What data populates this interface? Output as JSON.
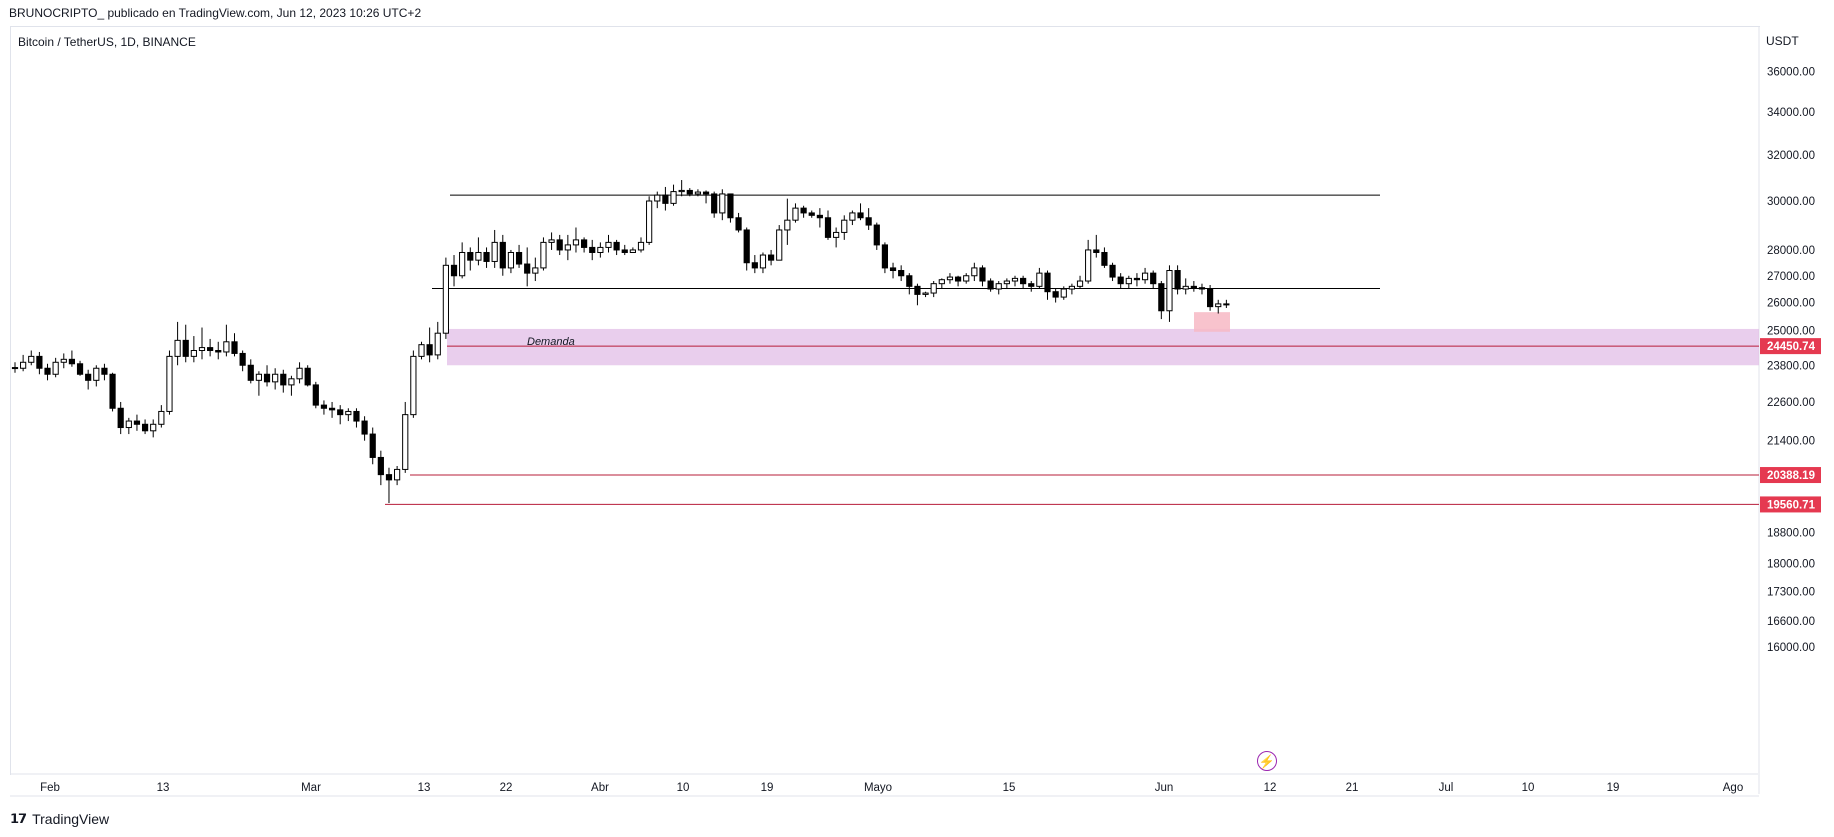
{
  "header": {
    "author_line": "BRUNOCRIPTO_ publicado en TradingView.com, Jun 12, 2023 10:26 UTC+2"
  },
  "symbol": {
    "title": "Bitcoin / TetherUS, 1D, BINANCE",
    "currency": "USDT"
  },
  "footer": {
    "brand": "TradingView",
    "brand_icon": "tradingview-logo-icon"
  },
  "icons": {
    "bolt": "lightning-icon"
  },
  "colors": {
    "candle": "#000000",
    "demand_zone": "#e1bee7",
    "level_line": "#b71c3a",
    "level_label_bg": "#e53950",
    "highlight_box": "#f7b9c4",
    "range_line": "#000000"
  },
  "chart_data": {
    "type": "candlestick",
    "title": "",
    "ylabel": "",
    "xlabel": "",
    "y_axis": {
      "scale": "log",
      "ticks": [
        "16000.00",
        "16600.00",
        "17300.00",
        "18000.00",
        "18800.00",
        "19560.71",
        "20388.19",
        "21400.00",
        "22600.00",
        "23800.00",
        "24450.74",
        "25000.00",
        "26000.00",
        "27000.00",
        "28000.00",
        "30000.00",
        "32000.00",
        "34000.00",
        "36000.00"
      ]
    },
    "x_axis": {
      "ticks": [
        "Feb",
        "13",
        "Mar",
        "13",
        "22",
        "Abr",
        "10",
        "19",
        "Mayo",
        "15",
        "Jun",
        "12",
        "21",
        "Jul",
        "10",
        "19",
        "Ago"
      ]
    },
    "candles": [
      [
        23723,
        23900,
        23550,
        23700
      ],
      [
        23700,
        24150,
        23600,
        23900
      ],
      [
        23900,
        24300,
        23800,
        24100
      ],
      [
        24100,
        24250,
        23500,
        23700
      ],
      [
        23700,
        23850,
        23300,
        23500
      ],
      [
        23500,
        24050,
        23400,
        23900
      ],
      [
        23900,
        24200,
        23700,
        24000
      ],
      [
        24000,
        24300,
        23750,
        23850
      ],
      [
        23850,
        23950,
        23450,
        23500
      ],
      [
        23500,
        23650,
        23000,
        23300
      ],
      [
        23300,
        23800,
        23100,
        23700
      ],
      [
        23700,
        23850,
        23300,
        23500
      ],
      [
        23500,
        23550,
        22300,
        22400
      ],
      [
        22400,
        22600,
        21600,
        21800
      ],
      [
        21800,
        22100,
        21600,
        22000
      ],
      [
        22000,
        22200,
        21700,
        21900
      ],
      [
        21900,
        22050,
        21600,
        21700
      ],
      [
        21700,
        22050,
        21500,
        21900
      ],
      [
        21900,
        22500,
        21800,
        22300
      ],
      [
        22300,
        24300,
        22200,
        24100
      ],
      [
        24100,
        25300,
        23800,
        24650
      ],
      [
        24650,
        25200,
        23900,
        24100
      ],
      [
        24100,
        24800,
        23900,
        24300
      ],
      [
        24300,
        25100,
        24000,
        24400
      ],
      [
        24400,
        24700,
        24100,
        24300
      ],
      [
        24300,
        24600,
        24000,
        24250
      ],
      [
        24250,
        25200,
        24100,
        24600
      ],
      [
        24600,
        24900,
        24100,
        24200
      ],
      [
        24200,
        24300,
        23600,
        23800
      ],
      [
        23800,
        24000,
        23200,
        23300
      ],
      [
        23300,
        23600,
        22800,
        23500
      ],
      [
        23500,
        23800,
        23100,
        23250
      ],
      [
        23250,
        23700,
        23000,
        23500
      ],
      [
        23500,
        23650,
        22900,
        23150
      ],
      [
        23150,
        23450,
        22800,
        23350
      ],
      [
        23350,
        23900,
        23200,
        23700
      ],
      [
        23700,
        23800,
        23100,
        23150
      ],
      [
        23150,
        23250,
        22400,
        22500
      ],
      [
        22500,
        22650,
        22200,
        22400
      ],
      [
        22400,
        22600,
        22100,
        22350
      ],
      [
        22350,
        22500,
        21900,
        22200
      ],
      [
        22200,
        22400,
        22000,
        22300
      ],
      [
        22300,
        22400,
        21800,
        22000
      ],
      [
        22000,
        22150,
        21400,
        21600
      ],
      [
        21600,
        21800,
        20700,
        20900
      ],
      [
        20900,
        21100,
        20100,
        20400
      ],
      [
        20400,
        20600,
        19600,
        20250
      ],
      [
        20250,
        20650,
        20100,
        20550
      ],
      [
        20550,
        22600,
        20450,
        22200
      ],
      [
        22200,
        24300,
        22100,
        24100
      ],
      [
        24100,
        24600,
        24000,
        24500
      ],
      [
        24500,
        25100,
        23900,
        24150
      ],
      [
        24150,
        25300,
        24000,
        24900
      ],
      [
        24900,
        27700,
        24700,
        27400
      ],
      [
        27400,
        27800,
        26600,
        27000
      ],
      [
        27000,
        28300,
        26900,
        27900
      ],
      [
        27900,
        28100,
        27200,
        27600
      ],
      [
        27600,
        28500,
        27400,
        27900
      ],
      [
        27900,
        28100,
        27300,
        27550
      ],
      [
        27550,
        28800,
        27300,
        28300
      ],
      [
        28300,
        28600,
        27000,
        27300
      ],
      [
        27300,
        28000,
        27100,
        27900
      ],
      [
        27900,
        28200,
        27300,
        27450
      ],
      [
        27450,
        28100,
        26600,
        27100
      ],
      [
        27100,
        27700,
        26800,
        27300
      ],
      [
        27300,
        28500,
        27200,
        28300
      ],
      [
        28300,
        28700,
        28000,
        28400
      ],
      [
        28400,
        28600,
        27800,
        28000
      ],
      [
        28000,
        28600,
        27600,
        28200
      ],
      [
        28200,
        28900,
        27900,
        28400
      ],
      [
        28400,
        28500,
        27900,
        28100
      ],
      [
        28100,
        28400,
        27600,
        27900
      ],
      [
        27900,
        28300,
        27700,
        28100
      ],
      [
        28100,
        28600,
        27900,
        28300
      ],
      [
        28300,
        28400,
        27800,
        28000
      ],
      [
        28000,
        28200,
        27800,
        27900
      ],
      [
        27900,
        28100,
        27900,
        28000
      ],
      [
        28000,
        28500,
        27900,
        28300
      ],
      [
        28300,
        30200,
        28200,
        30000
      ],
      [
        30000,
        30400,
        29700,
        30250
      ],
      [
        30250,
        30600,
        29600,
        29900
      ],
      [
        29900,
        30700,
        29800,
        30400
      ],
      [
        30400,
        30900,
        30200,
        30450
      ],
      [
        30450,
        30550,
        30200,
        30300
      ],
      [
        30300,
        30500,
        30200,
        30380
      ],
      [
        30380,
        30450,
        29900,
        30300
      ],
      [
        30300,
        30400,
        29300,
        29500
      ],
      [
        29500,
        30500,
        29200,
        30300
      ],
      [
        30300,
        30300,
        29100,
        29300
      ],
      [
        29300,
        29500,
        28700,
        28800
      ],
      [
        28800,
        28900,
        27200,
        27500
      ],
      [
        27500,
        27800,
        27100,
        27300
      ],
      [
        27300,
        27900,
        27100,
        27800
      ],
      [
        27800,
        28000,
        27400,
        27600
      ],
      [
        27600,
        29000,
        27600,
        28800
      ],
      [
        28800,
        30100,
        28200,
        29200
      ],
      [
        29200,
        29900,
        29100,
        29700
      ],
      [
        29700,
        29800,
        29300,
        29500
      ],
      [
        29500,
        29600,
        29300,
        29400
      ],
      [
        29400,
        29700,
        28900,
        29300
      ],
      [
        29300,
        29600,
        28400,
        28500
      ],
      [
        28500,
        28900,
        28100,
        28700
      ],
      [
        28700,
        29400,
        28400,
        29200
      ],
      [
        29200,
        29600,
        29000,
        29500
      ],
      [
        29500,
        29900,
        29200,
        29300
      ],
      [
        29300,
        29700,
        28800,
        29000
      ],
      [
        29000,
        29100,
        28000,
        28200
      ],
      [
        28200,
        28300,
        27100,
        27300
      ],
      [
        27300,
        27500,
        26900,
        27200
      ],
      [
        27200,
        27400,
        26800,
        27000
      ],
      [
        27000,
        27100,
        26300,
        26600
      ],
      [
        26600,
        26700,
        25900,
        26300
      ],
      [
        26300,
        26400,
        26200,
        26350
      ],
      [
        26350,
        26800,
        26200,
        26700
      ],
      [
        26700,
        26900,
        26500,
        26850
      ],
      [
        26850,
        27100,
        26700,
        26950
      ],
      [
        26950,
        27000,
        26600,
        26800
      ],
      [
        26800,
        27100,
        26700,
        27000
      ],
      [
        27000,
        27500,
        26800,
        27300
      ],
      [
        27300,
        27400,
        26600,
        26800
      ],
      [
        26800,
        26900,
        26400,
        26500
      ],
      [
        26500,
        26800,
        26300,
        26700
      ],
      [
        26700,
        26900,
        26500,
        26800
      ],
      [
        26800,
        27000,
        26600,
        26900
      ],
      [
        26900,
        27000,
        26500,
        26700
      ],
      [
        26700,
        26800,
        26400,
        26600
      ],
      [
        26600,
        27300,
        26500,
        27100
      ],
      [
        27100,
        27200,
        26100,
        26400
      ],
      [
        26400,
        26500,
        26000,
        26200
      ],
      [
        26200,
        26600,
        26100,
        26500
      ],
      [
        26500,
        26700,
        26300,
        26600
      ],
      [
        26600,
        27000,
        26500,
        26800
      ],
      [
        26800,
        28400,
        26700,
        28000
      ],
      [
        28000,
        28600,
        27700,
        27900
      ],
      [
        27900,
        28100,
        27300,
        27400
      ],
      [
        27400,
        27500,
        26800,
        26950
      ],
      [
        26950,
        27100,
        26500,
        26700
      ],
      [
        26700,
        27000,
        26500,
        26900
      ],
      [
        26900,
        27100,
        26600,
        26850
      ],
      [
        26850,
        27300,
        26700,
        27100
      ],
      [
        27100,
        27200,
        26500,
        26700
      ],
      [
        26700,
        26800,
        25400,
        25700
      ],
      [
        25700,
        27400,
        25300,
        27200
      ],
      [
        27200,
        27400,
        26300,
        26500
      ],
      [
        26500,
        26900,
        26300,
        26600
      ],
      [
        26600,
        26800,
        26400,
        26550
      ],
      [
        26550,
        26700,
        26300,
        26500
      ],
      [
        26500,
        26650,
        25700,
        25850
      ],
      [
        25850,
        26100,
        25600,
        25950
      ],
      [
        25950,
        26100,
        25800,
        25930
      ]
    ],
    "annotations": {
      "range_top": 30250,
      "range_bottom": 26520,
      "demand_zone": {
        "label": "Demanda",
        "top": 25050,
        "bottom": 23800
      },
      "levels": [
        24450.74,
        20388.19,
        19560.71
      ],
      "highlight": {
        "top": 25650,
        "bottom": 24950
      }
    }
  }
}
